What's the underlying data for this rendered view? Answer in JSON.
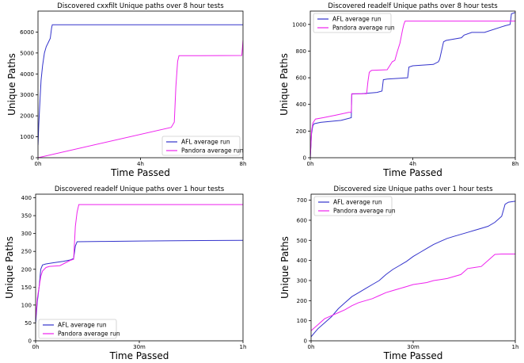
{
  "chart_data": [
    {
      "type": "line",
      "title": "Discovered cxxfilt Unique paths over 8 hour tests",
      "xlabel": "Time Passed",
      "ylabel": "Unique Paths",
      "xlim": [
        0,
        8
      ],
      "ylim": [
        0,
        7000
      ],
      "xticks": [
        0,
        4,
        8
      ],
      "xtick_labels": [
        "0h",
        "4h",
        "8h"
      ],
      "yticks": [
        0,
        1000,
        2000,
        3000,
        4000,
        5000,
        6000
      ],
      "ytick_labels": [
        "0",
        "1000",
        "2000",
        "3000",
        "4000",
        "5000",
        "6000"
      ],
      "legend_position": "bottom-right",
      "series": [
        {
          "name": "AFL average run",
          "color": "#3333cc",
          "x": [
            0,
            0.03,
            0.08,
            0.12,
            0.18,
            0.25,
            0.32,
            0.4,
            0.48,
            0.53,
            0.56,
            8
          ],
          "y": [
            600,
            1600,
            2800,
            3700,
            4400,
            5000,
            5300,
            5500,
            5700,
            6200,
            6350,
            6350
          ]
        },
        {
          "name": "Pandora average run",
          "color": "#ee22ee",
          "x": [
            0,
            5.2,
            5.32,
            5.38,
            5.45,
            5.5,
            7.95,
            7.98,
            8
          ],
          "y": [
            0,
            1450,
            1700,
            3400,
            4600,
            4870,
            4880,
            5300,
            5600
          ]
        }
      ]
    },
    {
      "type": "line",
      "title": "Discovered readelf Unique paths over 8 hour tests",
      "xlabel": "Time Passed",
      "ylabel": "Unique Paths",
      "xlim": [
        0,
        8
      ],
      "ylim": [
        0,
        1100
      ],
      "xticks": [
        0,
        4,
        8
      ],
      "xtick_labels": [
        "0h",
        "4h",
        "8h"
      ],
      "yticks": [
        0,
        200,
        400,
        600,
        800,
        1000
      ],
      "ytick_labels": [
        "0",
        "200",
        "400",
        "600",
        "800",
        "1000"
      ],
      "legend_position": "top-left",
      "series": [
        {
          "name": "AFL average run",
          "color": "#3333cc",
          "x": [
            0,
            0.05,
            0.1,
            0.15,
            0.4,
            1.2,
            1.6,
            1.62,
            2.0,
            2.6,
            2.8,
            2.85,
            3.0,
            3.8,
            3.85,
            4.0,
            4.8,
            5.0,
            5.05,
            5.2,
            5.3,
            5.9,
            6.0,
            6.3,
            6.8,
            7.6,
            7.8,
            7.85,
            8.0
          ],
          "y": [
            0,
            180,
            240,
            255,
            265,
            280,
            300,
            478,
            480,
            490,
            500,
            585,
            590,
            600,
            680,
            690,
            700,
            720,
            740,
            870,
            880,
            900,
            920,
            940,
            940,
            990,
            1000,
            1080,
            1090
          ]
        },
        {
          "name": "Pandora average run",
          "color": "#ee22ee",
          "x": [
            0,
            0.05,
            0.1,
            0.2,
            0.5,
            1.0,
            1.5,
            1.6,
            1.62,
            2.2,
            2.25,
            2.3,
            2.35,
            2.4,
            3.0,
            3.2,
            3.3,
            3.4,
            3.5,
            3.6,
            3.65,
            3.7,
            8.0
          ],
          "y": [
            0,
            200,
            260,
            290,
            300,
            320,
            340,
            340,
            480,
            480,
            570,
            640,
            650,
            655,
            660,
            720,
            730,
            800,
            860,
            960,
            1000,
            1025,
            1025
          ]
        }
      ]
    },
    {
      "type": "line",
      "title": "Discovered readelf Unique paths over 1 hour tests",
      "xlabel": "Time Passed",
      "ylabel": "Unique Paths",
      "xlim": [
        0,
        60
      ],
      "ylim": [
        0,
        410
      ],
      "xticks": [
        0,
        30,
        60
      ],
      "xtick_labels": [
        "0h",
        "30m",
        "1h"
      ],
      "yticks": [
        0,
        50,
        100,
        150,
        200,
        250,
        300,
        350,
        400
      ],
      "ytick_labels": [
        "0",
        "50",
        "100",
        "150",
        "200",
        "250",
        "300",
        "350",
        "400"
      ],
      "legend_position": "bottom-left",
      "series": [
        {
          "name": "AFL average run",
          "color": "#3333cc",
          "x": [
            0,
            0.5,
            1.0,
            1.5,
            2.0,
            3.0,
            5.0,
            8.0,
            10.0,
            11.0,
            11.5,
            12.0,
            20.0,
            30.0,
            40.0,
            60.0
          ],
          "y": [
            50,
            110,
            150,
            200,
            212,
            215,
            218,
            222,
            226,
            230,
            265,
            277,
            278,
            279,
            280,
            281
          ]
        },
        {
          "name": "Pandora average run",
          "color": "#ee22ee",
          "x": [
            0,
            0.5,
            1.0,
            1.5,
            2.0,
            3.0,
            4.0,
            7.0,
            8.0,
            10.0,
            11.0,
            11.5,
            12.0,
            12.5,
            60.0
          ],
          "y": [
            60,
            120,
            150,
            180,
            195,
            205,
            208,
            210,
            215,
            225,
            228,
            320,
            360,
            381,
            381
          ]
        }
      ]
    },
    {
      "type": "line",
      "title": "Discovered size Unique paths over 1 hour tests",
      "xlabel": "Time Passed",
      "ylabel": "Unique Paths",
      "xlim": [
        0,
        60
      ],
      "ylim": [
        0,
        730
      ],
      "xticks": [
        0,
        30,
        60
      ],
      "xtick_labels": [
        "0h",
        "30m",
        "1h"
      ],
      "yticks": [
        0,
        100,
        200,
        300,
        400,
        500,
        600,
        700
      ],
      "ytick_labels": [
        "0",
        "100",
        "200",
        "300",
        "400",
        "500",
        "600",
        "700"
      ],
      "legend_position": "top-left",
      "series": [
        {
          "name": "AFL average run",
          "color": "#3333cc",
          "x": [
            0,
            2,
            4,
            6,
            8,
            10,
            12,
            14,
            16,
            18,
            20,
            22,
            24,
            26,
            28,
            30,
            32,
            34,
            36,
            38,
            40,
            42,
            44,
            46,
            48,
            50,
            52,
            54,
            56,
            57,
            58,
            60
          ],
          "y": [
            20,
            60,
            90,
            120,
            160,
            190,
            220,
            240,
            260,
            280,
            300,
            330,
            355,
            375,
            395,
            420,
            440,
            460,
            480,
            495,
            510,
            520,
            530,
            540,
            550,
            560,
            570,
            590,
            620,
            680,
            690,
            695
          ]
        },
        {
          "name": "Pandora average run",
          "color": "#ee22ee",
          "x": [
            0,
            2,
            4,
            6,
            8,
            10,
            12,
            14,
            16,
            18,
            20,
            22,
            24,
            26,
            28,
            30,
            32,
            34,
            36,
            38,
            40,
            42,
            44,
            46,
            48,
            50,
            52,
            54,
            56,
            58,
            60
          ],
          "y": [
            50,
            80,
            110,
            125,
            140,
            155,
            175,
            190,
            200,
            210,
            225,
            240,
            250,
            260,
            270,
            280,
            285,
            290,
            300,
            305,
            310,
            320,
            330,
            360,
            365,
            370,
            400,
            430,
            432,
            432,
            432
          ]
        }
      ]
    }
  ]
}
